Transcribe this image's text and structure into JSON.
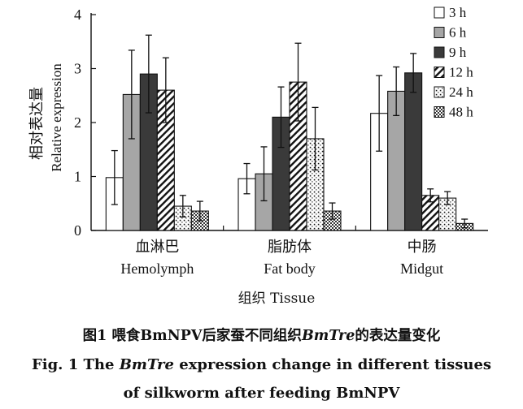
{
  "chart_data": {
    "type": "bar",
    "categories": [
      {
        "zh": "血淋巴",
        "en": "Hemolymph"
      },
      {
        "zh": "脂肪体",
        "en": "Fat body"
      },
      {
        "zh": "中肠",
        "en": "Midgut"
      }
    ],
    "series": [
      {
        "name": "3 h",
        "pattern": "white",
        "values": [
          0.98,
          0.96,
          2.17
        ],
        "errors": [
          0.5,
          0.28,
          0.7
        ]
      },
      {
        "name": "6 h",
        "pattern": "gray",
        "values": [
          2.52,
          1.05,
          2.58
        ],
        "errors": [
          0.82,
          0.5,
          0.45
        ]
      },
      {
        "name": "9 h",
        "pattern": "dark",
        "values": [
          2.9,
          2.1,
          2.92
        ],
        "errors": [
          0.72,
          0.56,
          0.36
        ]
      },
      {
        "name": "12 h",
        "pattern": "diagonal",
        "values": [
          2.6,
          2.75,
          0.65
        ],
        "errors": [
          0.6,
          0.72,
          0.12
        ]
      },
      {
        "name": "24 h",
        "pattern": "dots",
        "values": [
          0.45,
          1.7,
          0.6
        ],
        "errors": [
          0.2,
          0.58,
          0.12
        ]
      },
      {
        "name": "48 h",
        "pattern": "checker",
        "values": [
          0.36,
          0.36,
          0.13
        ],
        "errors": [
          0.18,
          0.15,
          0.08
        ]
      }
    ],
    "ylabel_zh": "相对表达量",
    "ylabel_en": "Relative expression",
    "xlabel": "组织 Tissue",
    "ylim": [
      0,
      4
    ],
    "yticks": [
      0,
      1,
      2,
      3,
      4
    ],
    "grid": false,
    "legend_position": "top-right"
  },
  "caption": {
    "line1_prefix": "图1   喂食BmNPV后家蚕不同组织",
    "line1_gene": "BmTre",
    "line1_suffix": "的表达量变化",
    "line2_prefix": "Fig. 1   The ",
    "line2_gene": "BmTre",
    "line2_suffix": " expression change in different tissues",
    "line3": "of silkworm after feeding BmNPV"
  }
}
